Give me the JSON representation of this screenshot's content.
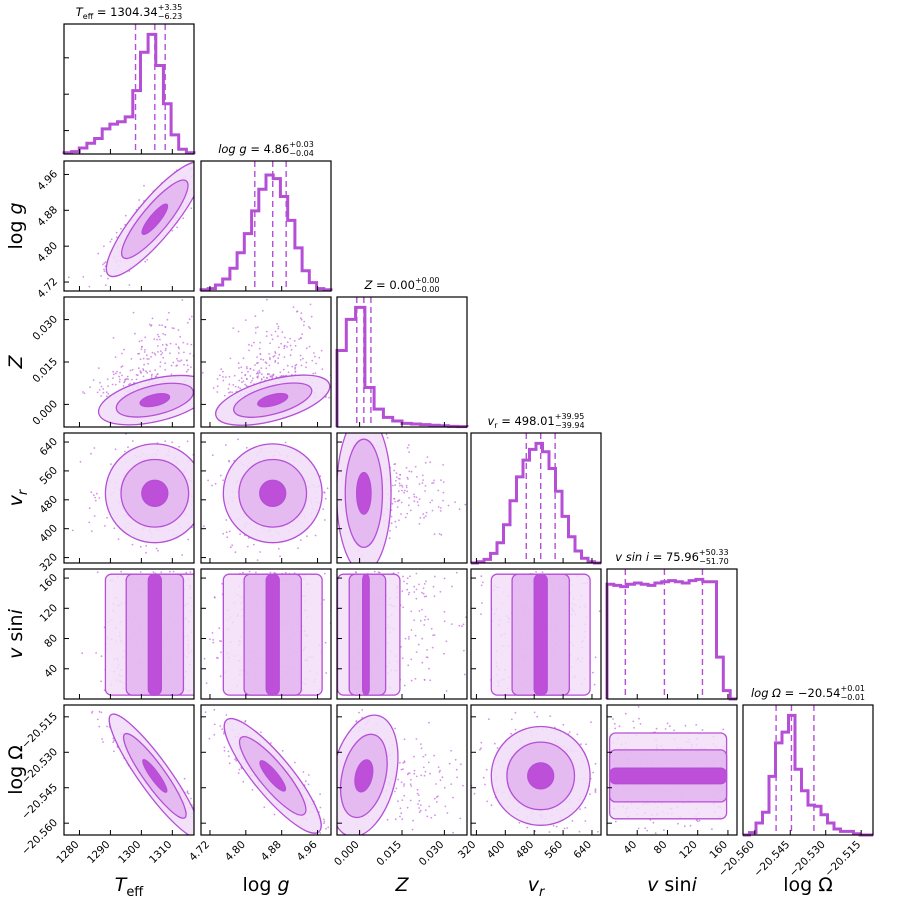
{
  "chart_data": {
    "type": "corner",
    "colors": {
      "main": "#b44fd6",
      "fill_outer": "#f2def8",
      "fill_mid": "#e3b6f0",
      "fill_inner": "#b944d6",
      "scatter": "#c46ee0"
    },
    "parameters": [
      {
        "key": "teff",
        "label": "T_eff",
        "range": [
          1275,
          1317
        ],
        "ticks": [
          1280,
          1290,
          1300,
          1310
        ],
        "tick_labels": [
          "1280",
          "1290",
          "1300",
          "1310"
        ],
        "median": 1304.34,
        "plus": 3.35,
        "minus": 6.23,
        "title_prefix": "T",
        "title_sub": "eff",
        "title_main": " = 1304.34",
        "title_plus": "+3.35",
        "title_minus": "−6.23",
        "hist": [
          0.01,
          0.02,
          0.05,
          0.09,
          0.13,
          0.21,
          0.25,
          0.27,
          0.31,
          0.53,
          0.85,
          1.0,
          0.74,
          0.42,
          0.16,
          0.04,
          0.01
        ],
        "corr_shape": [
          0,
          0
        ]
      },
      {
        "key": "logg",
        "label": "log g",
        "range": [
          4.7,
          4.99
        ],
        "ticks": [
          4.72,
          4.8,
          4.88,
          4.96
        ],
        "tick_labels": [
          "4.72",
          "4.80",
          "4.88",
          "4.96"
        ],
        "median": 4.86,
        "plus": 0.03,
        "minus": 0.04,
        "title_prefix": "log g",
        "title_main": " = 4.86",
        "title_plus": "+0.03",
        "title_minus": "−0.04",
        "hist": [
          0.01,
          0.02,
          0.05,
          0.1,
          0.19,
          0.32,
          0.48,
          0.67,
          0.85,
          0.97,
          0.94,
          0.79,
          0.59,
          0.36,
          0.17,
          0.07,
          0.02,
          0.01
        ]
      },
      {
        "key": "z",
        "label": "Z",
        "range": [
          -0.008,
          0.038
        ],
        "ticks": [
          0.0,
          0.015,
          0.03
        ],
        "tick_labels": [
          "0.000",
          "0.015",
          "0.030"
        ],
        "median": 0.0,
        "plus": 0.0,
        "minus": 0.0,
        "title_prefix": "Z",
        "title_main": " = 0.00",
        "title_plus": "+0.00",
        "title_minus": "−0.00",
        "hist": [
          0.64,
          0.9,
          1.0,
          0.33,
          0.15,
          0.08,
          0.05,
          0.03,
          0.025,
          0.02,
          0.015,
          0.01,
          0.005,
          0.003
        ]
      },
      {
        "key": "vr",
        "label": "v_r",
        "range": [
          305,
          665
        ],
        "ticks": [
          320,
          400,
          480,
          560,
          640
        ],
        "tick_labels": [
          "320",
          "400",
          "480",
          "560",
          "640"
        ],
        "median": 498.01,
        "plus": 39.95,
        "minus": 39.94,
        "title_prefix": "v",
        "title_sub": "r",
        "title_main": " = 498.01",
        "title_plus": "+39.95",
        "title_minus": "−39.94",
        "hist": [
          0.0,
          0.01,
          0.03,
          0.08,
          0.17,
          0.32,
          0.52,
          0.72,
          0.86,
          0.95,
          1.0,
          0.93,
          0.79,
          0.6,
          0.39,
          0.22,
          0.1,
          0.04,
          0.01,
          0.0
        ]
      },
      {
        "key": "vsini",
        "label": "v sin i",
        "range": [
          0,
          172
        ],
        "ticks": [
          40,
          80,
          120,
          160
        ],
        "tick_labels": [
          "40",
          "80",
          "120",
          "160"
        ],
        "median": 75.96,
        "plus": 50.33,
        "minus": 51.7,
        "title_prefix": "v sin i",
        "title_main": " = 75.96",
        "title_plus": "+50.33",
        "title_minus": "−51.70",
        "hist": [
          0.96,
          0.95,
          0.94,
          0.96,
          0.97,
          0.96,
          0.95,
          0.97,
          0.98,
          0.99,
          0.98,
          0.97,
          0.99,
          1.0,
          0.98,
          0.98,
          0.35,
          0.07,
          0.0
        ]
      },
      {
        "key": "logomega",
        "label": "log Ω",
        "range": [
          -20.565,
          -20.51
        ],
        "ticks": [
          -20.56,
          -20.545,
          -20.53,
          -20.515
        ],
        "tick_labels": [
          "−20.560",
          "−20.545",
          "−20.530",
          "−20.515"
        ],
        "median": -20.54,
        "plus": 0.01,
        "minus": 0.01,
        "title_prefix": "log Ω",
        "title_main": " = −20.54",
        "title_plus": "+0.01",
        "title_minus": "−0.01",
        "hist": [
          0.0,
          0.02,
          0.1,
          0.19,
          0.49,
          0.77,
          0.86,
          1.0,
          0.55,
          0.37,
          0.25,
          0.24,
          0.17,
          0.1,
          0.05,
          0.03,
          0.03,
          0.01,
          0.0,
          0.0
        ]
      }
    ],
    "quantile_lines": {
      "teff": [
        1298.11,
        1304.34,
        1307.69
      ],
      "logg": [
        4.82,
        4.86,
        4.89
      ],
      "z": [
        -0.001,
        0.0015,
        0.004
      ],
      "vr": [
        458.07,
        498.01,
        537.96
      ],
      "vsini": [
        24.26,
        75.96,
        126.29
      ],
      "logomega": [
        -20.551,
        -20.5445,
        -20.535
      ]
    },
    "correlations": {
      "1-0": {
        "rho": 0.85,
        "tilt": 1
      },
      "2-0": {
        "rho": 0.3,
        "skew": "z"
      },
      "2-1": {
        "rho": 0.35,
        "skew": "z"
      },
      "3-0": {
        "rho": 0.0
      },
      "3-1": {
        "rho": 0.0
      },
      "3-2": {
        "rho": 0.0,
        "skew": "z"
      },
      "4-0": {
        "rho": 0.0,
        "uniform": true
      },
      "4-1": {
        "rho": 0.0,
        "uniform": true
      },
      "4-2": {
        "rho": 0.0,
        "uniform": true,
        "skew": "z"
      },
      "4-3": {
        "rho": 0.0,
        "uniform": true
      },
      "5-0": {
        "rho": -0.95
      },
      "5-1": {
        "rho": -0.85
      },
      "5-2": {
        "rho": -0.3,
        "skew": "z"
      },
      "5-3": {
        "rho": 0.0
      },
      "5-4": {
        "rho": 0.0,
        "uniform": true
      }
    }
  }
}
